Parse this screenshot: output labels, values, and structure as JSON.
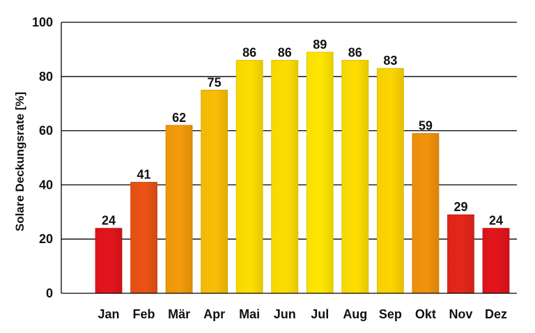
{
  "chart_data": {
    "type": "bar",
    "title": "",
    "xlabel": "",
    "ylabel": "Solare Deckungsrate [%]",
    "categories": [
      "Jan",
      "Feb",
      "Mär",
      "Apr",
      "Mai",
      "Jun",
      "Jul",
      "Aug",
      "Sep",
      "Okt",
      "Nov",
      "Dez"
    ],
    "values": [
      24,
      41,
      62,
      75,
      86,
      86,
      89,
      86,
      83,
      59,
      29,
      24
    ],
    "value_labels": [
      "24",
      "41",
      "62",
      "75",
      "86",
      "86",
      "89",
      "86",
      "83",
      "59",
      "29",
      "24"
    ],
    "ylim": [
      0,
      100
    ],
    "yticks": [
      0,
      20,
      40,
      60,
      80,
      100
    ],
    "ytick_labels": [
      "0",
      "20",
      "40",
      "60",
      "80",
      "100"
    ],
    "grid": true,
    "legend": "none",
    "colors": {
      "low": "#e3141c",
      "mid": "#f08c0c",
      "high": "#ffe600",
      "grid": "#000000",
      "text": "#111111"
    }
  }
}
